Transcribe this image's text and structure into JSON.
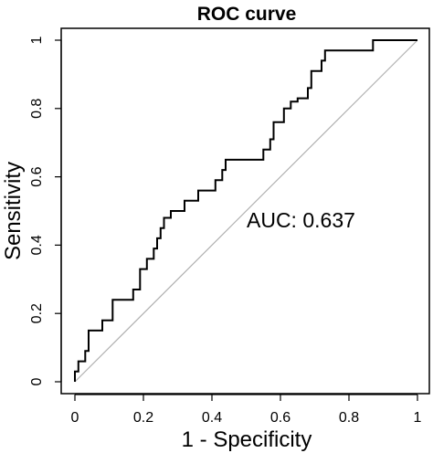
{
  "chart_data": {
    "type": "line",
    "title": "ROC curve",
    "xlabel": "1 - Specificity",
    "ylabel": "Sensitivity",
    "xlim": [
      0,
      1
    ],
    "ylim": [
      0,
      1
    ],
    "x_ticks": [
      "0",
      "0.2",
      "0.4",
      "0.6",
      "0.8",
      "1"
    ],
    "y_ticks": [
      "0",
      "0.2",
      "0.4",
      "0.6",
      "0.8",
      "1"
    ],
    "grid": false,
    "legend": "none",
    "annotation": "AUC: 0.637",
    "reference_line": {
      "x": [
        0,
        1
      ],
      "y": [
        0,
        1
      ],
      "color": "#b0b0b0"
    },
    "series": [
      {
        "color": "#000000",
        "x": [
          0,
          0,
          0.01,
          0.01,
          0.03,
          0.03,
          0.04,
          0.04,
          0.08,
          0.08,
          0.11,
          0.11,
          0.17,
          0.17,
          0.19,
          0.19,
          0.21,
          0.21,
          0.23,
          0.23,
          0.24,
          0.24,
          0.25,
          0.25,
          0.26,
          0.26,
          0.28,
          0.28,
          0.32,
          0.32,
          0.36,
          0.36,
          0.41,
          0.41,
          0.43,
          0.43,
          0.44,
          0.44,
          0.55,
          0.55,
          0.57,
          0.57,
          0.58,
          0.58,
          0.61,
          0.61,
          0.63,
          0.63,
          0.65,
          0.65,
          0.68,
          0.68,
          0.69,
          0.69,
          0.7,
          0.7,
          0.72,
          0.72,
          0.73,
          0.73,
          0.75,
          0.75,
          0.87,
          0.87,
          1.0,
          1.0
        ],
        "y": [
          0,
          0.03,
          0.03,
          0.06,
          0.06,
          0.09,
          0.09,
          0.15,
          0.15,
          0.18,
          0.18,
          0.24,
          0.24,
          0.27,
          0.27,
          0.33,
          0.33,
          0.36,
          0.36,
          0.39,
          0.39,
          0.42,
          0.42,
          0.45,
          0.45,
          0.48,
          0.48,
          0.5,
          0.5,
          0.53,
          0.53,
          0.56,
          0.56,
          0.59,
          0.59,
          0.62,
          0.62,
          0.65,
          0.65,
          0.68,
          0.68,
          0.71,
          0.71,
          0.76,
          0.76,
          0.8,
          0.8,
          0.82,
          0.82,
          0.83,
          0.83,
          0.86,
          0.86,
          0.91,
          0.91,
          0.91,
          0.91,
          0.94,
          0.94,
          0.97,
          0.97,
          0.97,
          0.97,
          1.0,
          1.0,
          1.0
        ]
      }
    ]
  }
}
